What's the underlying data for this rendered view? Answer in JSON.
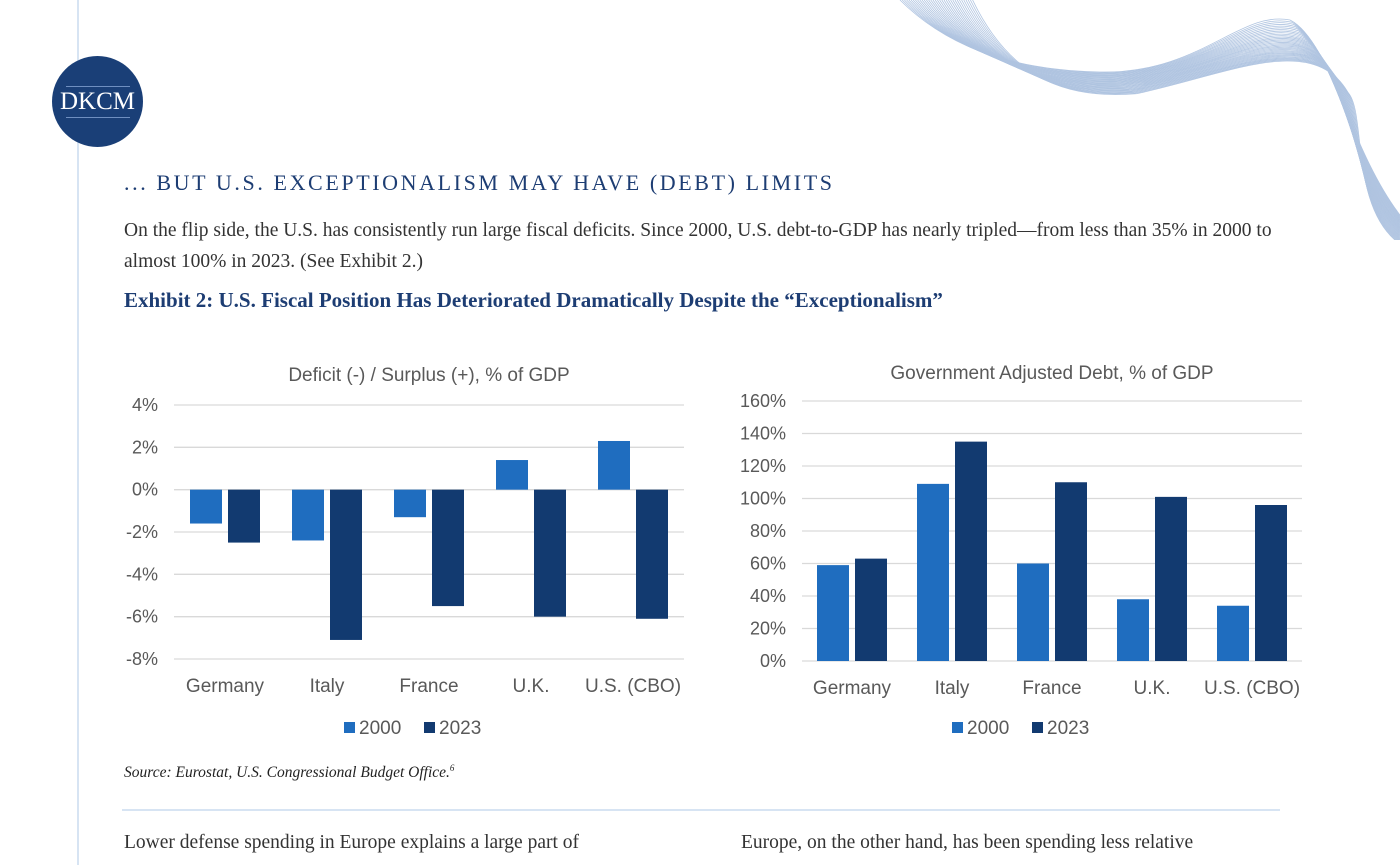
{
  "logo": {
    "text": "DKCM"
  },
  "section_title": "... BUT U.S. EXCEPTIONALISM MAY HAVE (DEBT) LIMITS",
  "intro_text": "On the flip side, the U.S. has consistently run large fiscal deficits. Since 2000, U.S. debt-to-GDP has nearly tripled—from less than 35% in 2000 to almost 100% in 2023. (See Exhibit 2.)",
  "exhibit_title": "Exhibit 2:  U.S. Fiscal Position Has Deteriorated Dramatically Despite the “Exceptionalism”",
  "source": {
    "text": "Source: Eurostat, U.S. Congressional Budget Office.",
    "footnote": "6"
  },
  "columns": {
    "left": "Lower defense spending in Europe explains a large part of",
    "right": "Europe, on the other hand, has been spending less relative"
  },
  "colors": {
    "series_2000": "#1f6dbf",
    "series_2023": "#123a70",
    "heading": "#1d3d73"
  },
  "chart_data": [
    {
      "type": "bar",
      "title": "Deficit (-) / Surplus (+), % of GDP",
      "categories": [
        "Germany",
        "Italy",
        "France",
        "U.K.",
        "U.S. (CBO)"
      ],
      "series": [
        {
          "name": "2000",
          "values": [
            -1.6,
            -2.4,
            -1.3,
            1.4,
            2.3
          ]
        },
        {
          "name": "2023",
          "values": [
            -2.5,
            -7.1,
            -5.5,
            -6.0,
            -6.1
          ]
        }
      ],
      "ylim": [
        -8,
        4
      ],
      "yticks": [
        4,
        2,
        0,
        -2,
        -4,
        -6,
        -8
      ],
      "ytick_labels": [
        "4%",
        "2%",
        "0%",
        "-2%",
        "-4%",
        "-6%",
        "-8%"
      ],
      "grid": true,
      "legend": "bottom"
    },
    {
      "type": "bar",
      "title": "Government Adjusted Debt, % of GDP",
      "categories": [
        "Germany",
        "Italy",
        "France",
        "U.K.",
        "U.S. (CBO)"
      ],
      "series": [
        {
          "name": "2000",
          "values": [
            59,
            109,
            60,
            38,
            34
          ]
        },
        {
          "name": "2023",
          "values": [
            63,
            135,
            110,
            101,
            96
          ]
        }
      ],
      "ylim": [
        0,
        160
      ],
      "yticks": [
        160,
        140,
        120,
        100,
        80,
        60,
        40,
        20,
        0
      ],
      "ytick_labels": [
        "160%",
        "140%",
        "120%",
        "100%",
        "80%",
        "60%",
        "40%",
        "20%",
        "0%"
      ],
      "grid": true,
      "legend": "bottom"
    }
  ]
}
